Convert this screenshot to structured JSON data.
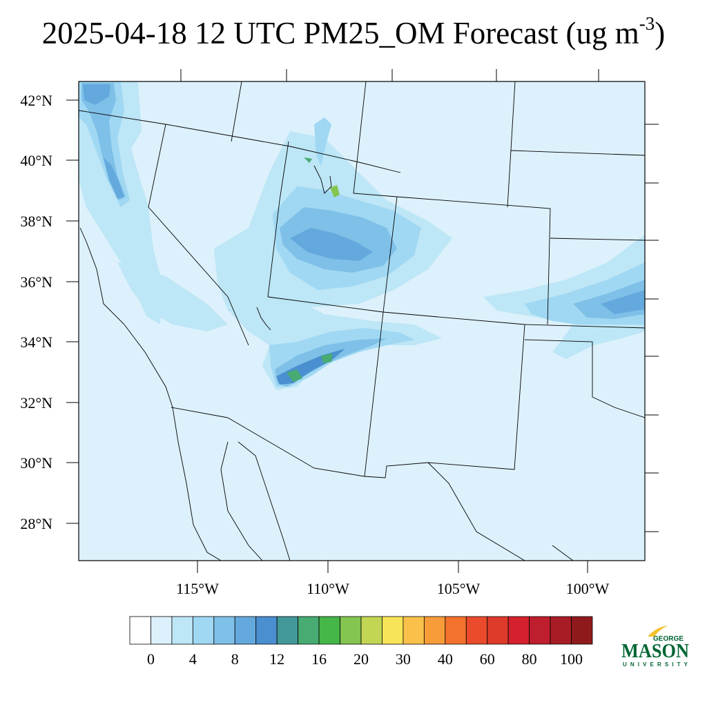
{
  "title": {
    "text": "2025-04-18 12 UTC PM25_OM Forecast (ug m",
    "exponent": "-3",
    "close": ")"
  },
  "map": {
    "lat_labels": [
      "42°N",
      "40°N",
      "38°N",
      "36°N",
      "34°N",
      "32°N",
      "30°N",
      "28°N"
    ],
    "lon_labels": [
      "115°W",
      "110°W",
      "105°W",
      "100°W"
    ],
    "field_background": "#dcf1fb"
  },
  "colorbar": {
    "colors": [
      "#ffffff",
      "#dcf1fb",
      "#bde6f6",
      "#a0d8f3",
      "#7fc0e8",
      "#64a9dd",
      "#4a8fcf",
      "#43999a",
      "#47ab72",
      "#45b648",
      "#84c451",
      "#c2d653",
      "#f8e458",
      "#f9c04a",
      "#f89c3a",
      "#f3722c",
      "#e94b2c",
      "#dd3a2a",
      "#d5202e",
      "#be1e2d",
      "#a81c26",
      "#8e1a1c"
    ],
    "labels": [
      "0",
      "4",
      "8",
      "12",
      "16",
      "20",
      "30",
      "40",
      "60",
      "80",
      "100"
    ]
  },
  "logo": {
    "top": "GEORGE",
    "main": "MASON",
    "bottom": "UNIVERSITY",
    "color": "#006633",
    "accent": "#f2c230"
  }
}
